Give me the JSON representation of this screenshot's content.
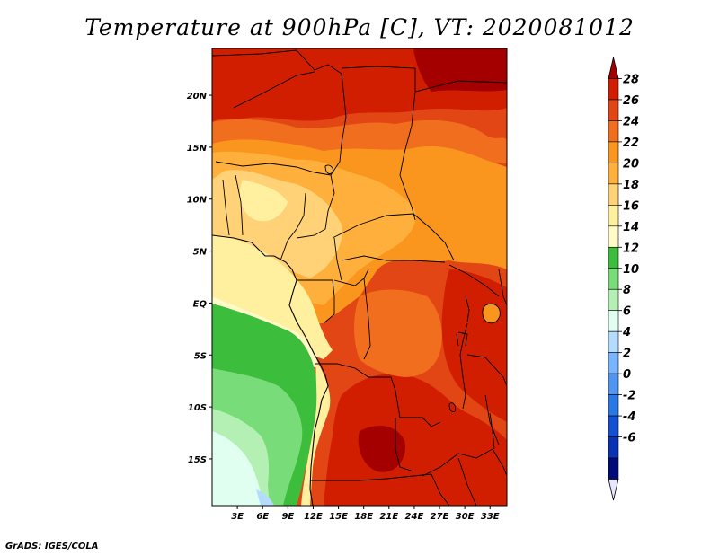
{
  "title": "Temperature at 900hPa [C], VT: 2020081012",
  "credit": "GrADS: IGES/COLA",
  "map": {
    "lat_ticks": [
      "20N",
      "15N",
      "10N",
      "5N",
      "EQ",
      "5S",
      "10S",
      "15S"
    ],
    "lon_ticks": [
      "3E",
      "6E",
      "9E",
      "12E",
      "15E",
      "18E",
      "21E",
      "24E",
      "27E",
      "30E",
      "33E"
    ],
    "lat_range": [
      -19.5,
      24.5
    ],
    "lon_range": [
      0,
      35
    ]
  },
  "colorbar": {
    "labels": [
      "28",
      "26",
      "24",
      "22",
      "20",
      "18",
      "16",
      "14",
      "12",
      "10",
      "8",
      "6",
      "4",
      "2",
      "0",
      "-2",
      "-4",
      "-6"
    ],
    "colors": [
      "#a50000",
      "#d21e00",
      "#e14614",
      "#f06e1e",
      "#fa961e",
      "#ffaf3c",
      "#ffd278",
      "#fff0a0",
      "#fffac8",
      "#3cbe3c",
      "#78dc78",
      "#b4f0b4",
      "#e1fff0",
      "#b4dcff",
      "#78b4ff",
      "#5096f0",
      "#2878e6",
      "#1450d2",
      "#0a32b4",
      "#000a78",
      "#e6e6ff"
    ]
  }
}
